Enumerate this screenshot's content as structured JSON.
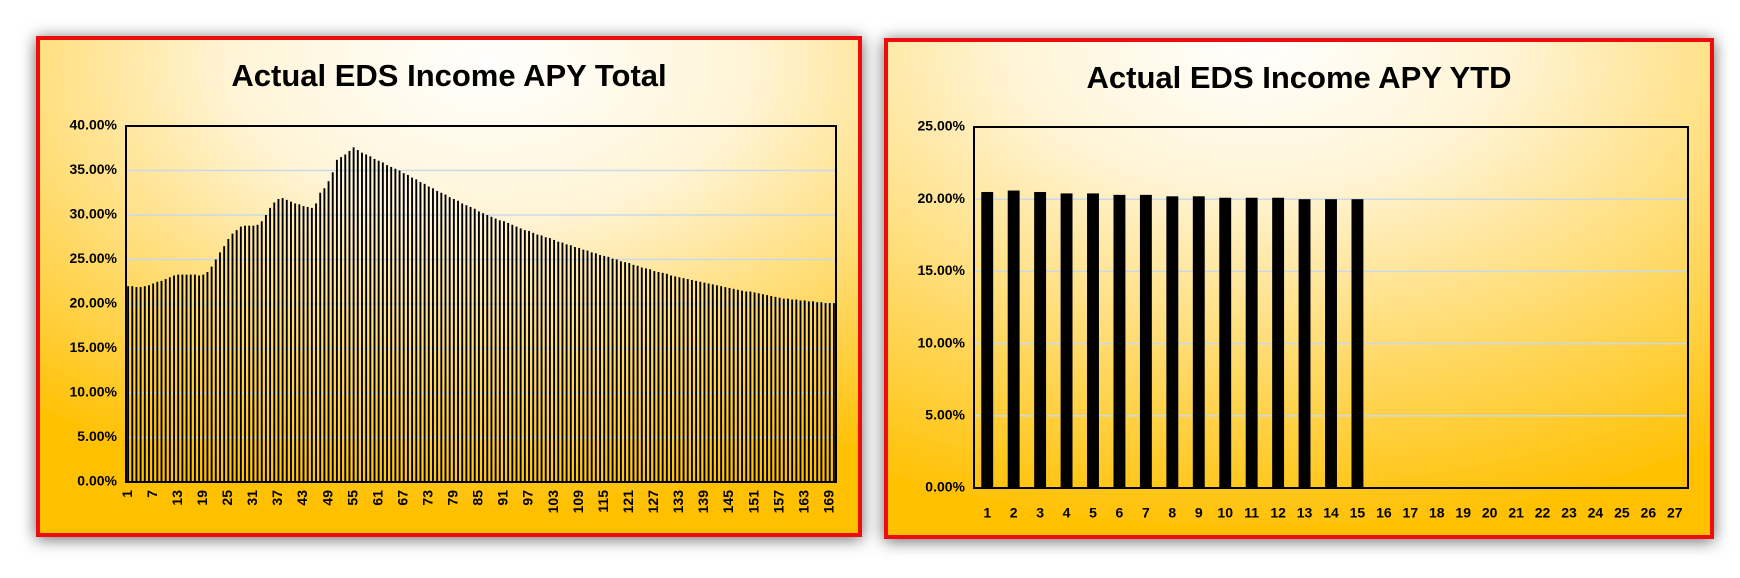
{
  "chart_data": [
    {
      "type": "bar",
      "title": "Actual EDS Income APY Total",
      "categories": [
        "1",
        null,
        null,
        null,
        null,
        null,
        "7",
        null,
        null,
        null,
        null,
        null,
        "13",
        null,
        null,
        null,
        null,
        null,
        "19",
        null,
        null,
        null,
        null,
        null,
        "25",
        null,
        null,
        null,
        null,
        null,
        "31",
        null,
        null,
        null,
        null,
        null,
        "37",
        null,
        null,
        null,
        null,
        null,
        "43",
        null,
        null,
        null,
        null,
        null,
        "49",
        null,
        null,
        null,
        null,
        null,
        "55",
        null,
        null,
        null,
        null,
        null,
        "61",
        null,
        null,
        null,
        null,
        null,
        "67",
        null,
        null,
        null,
        null,
        null,
        "73",
        null,
        null,
        null,
        null,
        null,
        "79",
        null,
        null,
        null,
        null,
        null,
        "85",
        null,
        null,
        null,
        null,
        null,
        "91",
        null,
        null,
        null,
        null,
        null,
        "97",
        null,
        null,
        null,
        null,
        null,
        "103",
        null,
        null,
        null,
        null,
        null,
        "109",
        null,
        null,
        null,
        null,
        null,
        "115",
        null,
        null,
        null,
        null,
        null,
        "121",
        null,
        null,
        null,
        null,
        null,
        "127",
        null,
        null,
        null,
        null,
        null,
        "133",
        null,
        null,
        null,
        null,
        null,
        "139",
        null,
        null,
        null,
        null,
        null,
        "145",
        null,
        null,
        null,
        null,
        null,
        "151",
        null,
        null,
        null,
        null,
        null,
        "157",
        null,
        null,
        null,
        null,
        null,
        "163",
        null,
        null,
        null,
        null,
        null,
        "169",
        null
      ],
      "values": [
        22.0,
        22.0,
        21.9,
        21.9,
        22.0,
        22.1,
        22.3,
        22.5,
        22.6,
        22.8,
        23.0,
        23.2,
        23.3,
        23.3,
        23.3,
        23.3,
        23.3,
        23.2,
        23.3,
        23.6,
        24.2,
        25.0,
        25.8,
        26.5,
        27.3,
        27.9,
        28.3,
        28.7,
        28.8,
        28.8,
        28.8,
        28.9,
        29.3,
        30.0,
        30.8,
        31.4,
        31.8,
        31.9,
        31.7,
        31.5,
        31.3,
        31.2,
        31.0,
        30.9,
        30.8,
        31.3,
        32.5,
        33.0,
        33.8,
        34.8,
        36.2,
        36.5,
        36.8,
        37.2,
        37.6,
        37.3,
        37.0,
        36.8,
        36.6,
        36.3,
        36.1,
        35.9,
        35.6,
        35.4,
        35.2,
        35.0,
        34.7,
        34.5,
        34.2,
        34.0,
        33.7,
        33.5,
        33.2,
        33.0,
        32.7,
        32.5,
        32.3,
        32.0,
        31.8,
        31.6,
        31.3,
        31.1,
        30.9,
        30.7,
        30.4,
        30.2,
        30.0,
        29.8,
        29.6,
        29.4,
        29.3,
        29.1,
        28.9,
        28.7,
        28.5,
        28.3,
        28.2,
        28.0,
        27.8,
        27.7,
        27.5,
        27.4,
        27.2,
        27.0,
        26.9,
        26.7,
        26.6,
        26.4,
        26.3,
        26.1,
        26.0,
        25.8,
        25.7,
        25.5,
        25.4,
        25.3,
        25.1,
        25.0,
        24.8,
        24.7,
        24.6,
        24.4,
        24.3,
        24.1,
        24.0,
        23.9,
        23.7,
        23.6,
        23.5,
        23.4,
        23.2,
        23.1,
        23.0,
        22.9,
        22.8,
        22.7,
        22.6,
        22.5,
        22.4,
        22.3,
        22.2,
        22.1,
        22.0,
        21.9,
        21.8,
        21.7,
        21.6,
        21.5,
        21.4,
        21.4,
        21.3,
        21.2,
        21.1,
        21.0,
        20.9,
        20.8,
        20.7,
        20.6,
        20.6,
        20.5,
        20.5,
        20.4,
        20.4,
        20.3,
        20.3,
        20.2,
        20.2,
        20.1,
        20.1,
        20.1
      ],
      "color": "#000000",
      "ylim": [
        0,
        40
      ],
      "yticks": [
        {
          "value": 0,
          "label": "0.00%"
        },
        {
          "value": 5,
          "label": "5.00%"
        },
        {
          "value": 10,
          "label": "10.00%"
        },
        {
          "value": 15,
          "label": "15.00%"
        },
        {
          "value": 20,
          "label": "20.00%"
        },
        {
          "value": 25,
          "label": "25.00%"
        },
        {
          "value": 30,
          "label": "30.00%"
        },
        {
          "value": 35,
          "label": "35.00%"
        },
        {
          "value": 40,
          "label": "40.00%"
        }
      ],
      "grid": true
    },
    {
      "type": "bar",
      "title": "Actual EDS Income APY YTD",
      "categories": [
        "1",
        "2",
        "3",
        "4",
        "5",
        "6",
        "7",
        "8",
        "9",
        "10",
        "11",
        "12",
        "13",
        "14",
        "15",
        "16",
        "17",
        "18",
        "19",
        "20",
        "21",
        "22",
        "23",
        "24",
        "25",
        "26",
        "27"
      ],
      "values": [
        20.5,
        20.6,
        20.5,
        20.4,
        20.4,
        20.3,
        20.3,
        20.2,
        20.2,
        20.1,
        20.1,
        20.1,
        20.0,
        20.0,
        20.0,
        null,
        null,
        null,
        null,
        null,
        null,
        null,
        null,
        null,
        null,
        null,
        null
      ],
      "color": "#000000",
      "ylim": [
        0,
        25
      ],
      "yticks": [
        {
          "value": 0,
          "label": "0.00%"
        },
        {
          "value": 5,
          "label": "5.00%"
        },
        {
          "value": 10,
          "label": "10.00%"
        },
        {
          "value": 15,
          "label": "15.00%"
        },
        {
          "value": 20,
          "label": "20.00%"
        },
        {
          "value": 25,
          "label": "25.00%"
        }
      ],
      "grid": true
    }
  ]
}
